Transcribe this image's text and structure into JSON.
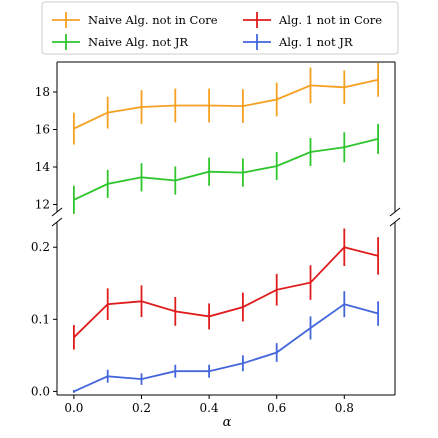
{
  "chart_data": {
    "type": "line",
    "xlabel": "α",
    "x": [
      0.0,
      0.1,
      0.2,
      0.3,
      0.4,
      0.5,
      0.6,
      0.7,
      0.8,
      0.9
    ],
    "xticks": [
      "0.0",
      "0.2",
      "0.4",
      "0.6",
      "0.8"
    ],
    "xtick_values": [
      0.0,
      0.2,
      0.4,
      0.6,
      0.8
    ],
    "xlim": [
      -0.05,
      0.95
    ],
    "broken_y_axis": true,
    "upper_panel": {
      "ylim": [
        11.6,
        19.6
      ],
      "yticks": [
        "12",
        "14",
        "16",
        "18"
      ],
      "ytick_values": [
        12,
        14,
        16,
        18
      ]
    },
    "lower_panel": {
      "ylim": [
        -0.005,
        0.235
      ],
      "yticks": [
        "0.0",
        "0.1",
        "0.2"
      ],
      "ytick_values": [
        0.0,
        0.1,
        0.2
      ]
    },
    "legend_position": "top",
    "series": [
      {
        "name": "Naive Alg. not in Core",
        "color": "#f5a021",
        "panel": "upper",
        "values": [
          16.05,
          16.9,
          17.2,
          17.28,
          17.28,
          17.25,
          17.6,
          18.35,
          18.25,
          18.65
        ],
        "errors": [
          0.85,
          0.85,
          0.9,
          0.9,
          0.9,
          0.9,
          0.9,
          0.95,
          0.9,
          0.9
        ]
      },
      {
        "name": "Naive Alg. not JR",
        "color": "#2ec52e",
        "panel": "upper",
        "values": [
          12.25,
          13.1,
          13.45,
          13.28,
          13.75,
          13.7,
          14.05,
          14.8,
          15.05,
          15.5
        ],
        "errors": [
          0.75,
          0.75,
          0.75,
          0.75,
          0.75,
          0.75,
          0.75,
          0.75,
          0.8,
          0.8
        ]
      },
      {
        "name": "Alg. 1 not in Core",
        "color": "#e01b1b",
        "panel": "lower",
        "values": [
          0.075,
          0.121,
          0.125,
          0.111,
          0.104,
          0.117,
          0.141,
          0.151,
          0.2,
          0.188
        ],
        "errors": [
          0.017,
          0.022,
          0.022,
          0.02,
          0.018,
          0.02,
          0.022,
          0.024,
          0.026,
          0.026
        ]
      },
      {
        "name": "Alg. 1 not JR",
        "color": "#4466dd",
        "panel": "lower",
        "values": [
          0.0,
          0.021,
          0.017,
          0.028,
          0.028,
          0.039,
          0.054,
          0.088,
          0.121,
          0.108
        ],
        "errors": [
          0.002,
          0.009,
          0.008,
          0.009,
          0.009,
          0.011,
          0.013,
          0.016,
          0.018,
          0.017
        ]
      }
    ]
  }
}
